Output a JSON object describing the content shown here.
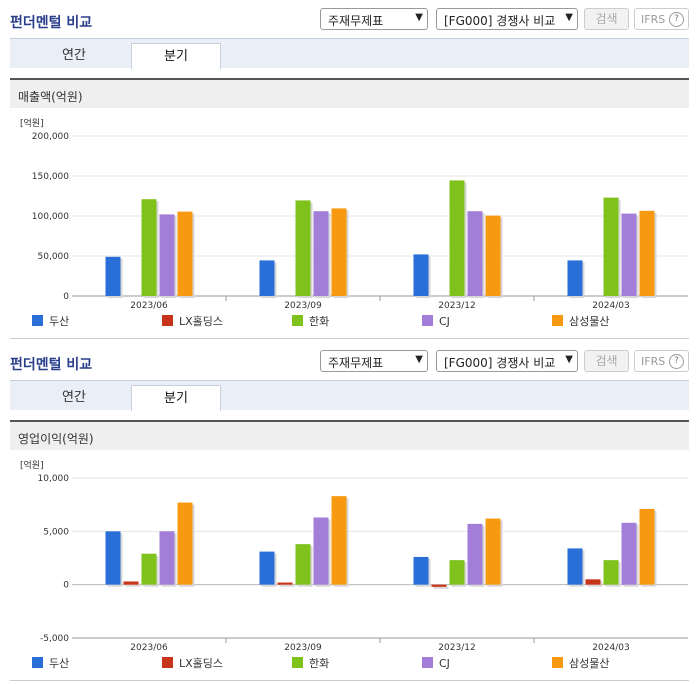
{
  "sections": [
    {
      "title": "펀더멘털 비교",
      "select_statement": "주재무제표",
      "select_compare": "[FG000] 경쟁사 비교",
      "search_label": "검색",
      "ifrs_label": "IFRS",
      "ifrs_help": "?",
      "tabs": [
        {
          "label": "연간"
        },
        {
          "label": "분기"
        }
      ],
      "active_tab": "분기",
      "panel_title": "매출액(억원)"
    },
    {
      "title": "펀더멘털 비교",
      "select_statement": "주재무제표",
      "select_compare": "[FG000] 경쟁사 비교",
      "search_label": "검색",
      "ifrs_label": "IFRS",
      "ifrs_help": "?",
      "tabs": [
        {
          "label": "연간"
        },
        {
          "label": "분기"
        }
      ],
      "active_tab": "분기",
      "panel_title": "영업이익(억원)"
    }
  ],
  "colors": {
    "두산": "#2a6ed8",
    "LX홀딩스": "#c8341a",
    "한화": "#80c21c",
    "CJ": "#a37ed9",
    "삼성물산": "#f79a12"
  },
  "chart_data": [
    {
      "type": "bar",
      "title": "매출액(억원)",
      "unit_label": "[억원]",
      "categories": [
        "2023/06",
        "2023/09",
        "2023/12",
        "2024/03"
      ],
      "ylim": [
        0,
        200000
      ],
      "yticks": [
        0,
        50000,
        100000,
        150000,
        200000
      ],
      "ytick_labels": [
        "0",
        "50,000",
        "100,000",
        "150,000",
        "200,000"
      ],
      "grid": true,
      "legend_position": "bottom",
      "series": [
        {
          "name": "두산",
          "values": [
            49000,
            44500,
            52000,
            44500
          ]
        },
        {
          "name": "LX홀딩스",
          "values": [
            0,
            0,
            0,
            0
          ]
        },
        {
          "name": "한화",
          "values": [
            121000,
            119500,
            144500,
            123000
          ]
        },
        {
          "name": "CJ",
          "values": [
            102000,
            106000,
            106000,
            103000
          ]
        },
        {
          "name": "삼성물산",
          "values": [
            105500,
            109500,
            100500,
            106500
          ]
        }
      ]
    },
    {
      "type": "bar",
      "title": "영업이익(억원)",
      "unit_label": "[억원]",
      "categories": [
        "2023/06",
        "2023/09",
        "2023/12",
        "2024/03"
      ],
      "ylim": [
        -5000,
        10000
      ],
      "yticks": [
        -5000,
        0,
        5000,
        10000
      ],
      "ytick_labels": [
        "-5,000",
        "0",
        "5,000",
        "10,000"
      ],
      "grid": true,
      "legend_position": "bottom",
      "series": [
        {
          "name": "두산",
          "values": [
            5000,
            3100,
            2600,
            3400
          ]
        },
        {
          "name": "LX홀딩스",
          "values": [
            300,
            200,
            -200,
            500
          ]
        },
        {
          "name": "한화",
          "values": [
            2900,
            3800,
            2300,
            2300
          ]
        },
        {
          "name": "CJ",
          "values": [
            5000,
            6300,
            5700,
            5800
          ]
        },
        {
          "name": "삼성물산",
          "values": [
            7700,
            8300,
            6200,
            7100
          ]
        }
      ]
    }
  ]
}
